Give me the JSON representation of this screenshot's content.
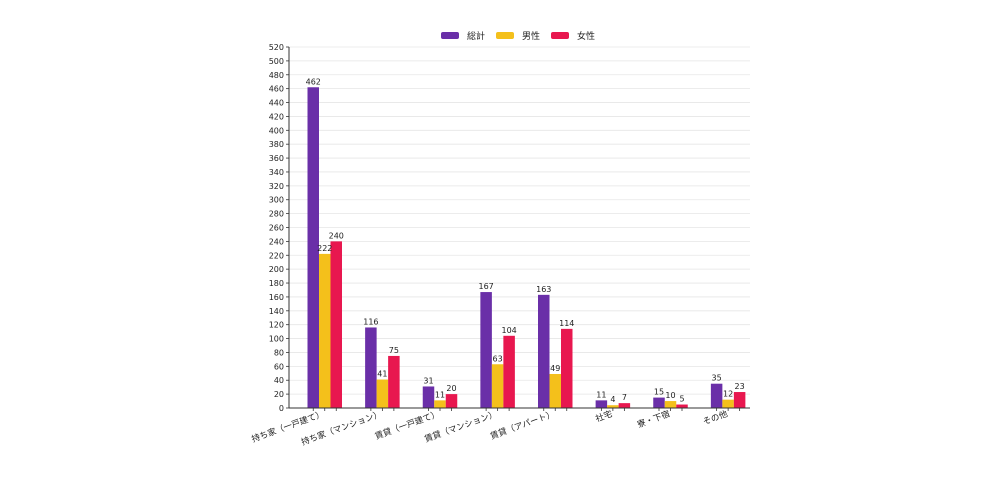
{
  "chart_data": {
    "type": "bar",
    "categories": [
      "持ち家（一戸建て）",
      "持ち家（マンション）",
      "賃貸（一戸建て）",
      "賃貸（マンション）",
      "賃貸（アパート）",
      "社宅",
      "寮・下宿",
      "その他"
    ],
    "series": [
      {
        "name": "総計",
        "color": "#6a2fa8",
        "values": [
          462,
          116,
          31,
          167,
          163,
          11,
          15,
          35
        ]
      },
      {
        "name": "男性",
        "color": "#f4c01b",
        "values": [
          222,
          41,
          11,
          63,
          49,
          4,
          10,
          12
        ]
      },
      {
        "name": "女性",
        "color": "#e8174f",
        "values": [
          240,
          75,
          20,
          104,
          114,
          7,
          5,
          23
        ]
      }
    ],
    "ylim": [
      0,
      520
    ],
    "ytick_step": 20,
    "grid": true,
    "legend": "top-center"
  }
}
